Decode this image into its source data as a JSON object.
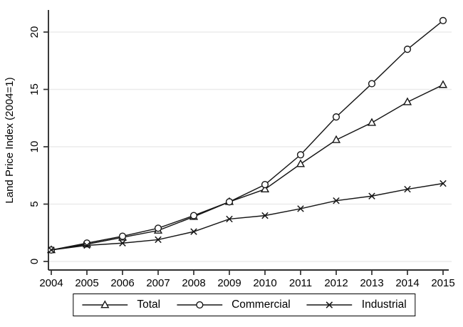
{
  "chart_data": {
    "type": "line",
    "title": "",
    "xlabel": "",
    "ylabel": "Land Price Index (2004=1)",
    "x": [
      "2004",
      "2005",
      "2006",
      "2007",
      "2008",
      "2009",
      "2010",
      "2011",
      "2012",
      "2013",
      "2014",
      "2015"
    ],
    "yticks": [
      0,
      5,
      10,
      15,
      20
    ],
    "ylim": [
      0,
      21.5
    ],
    "grid": "horizontal",
    "legend_position": "bottom-boxed",
    "series": [
      {
        "name": "Total",
        "marker": "triangle",
        "values": [
          1.0,
          1.5,
          2.1,
          2.7,
          3.9,
          5.2,
          6.3,
          8.5,
          10.6,
          12.1,
          13.9,
          15.4
        ]
      },
      {
        "name": "Commercial",
        "marker": "circle",
        "values": [
          1.0,
          1.6,
          2.2,
          2.9,
          4.0,
          5.2,
          6.7,
          9.3,
          12.6,
          15.5,
          18.5,
          21.0
        ]
      },
      {
        "name": "Industrial",
        "marker": "x",
        "values": [
          1.0,
          1.4,
          1.6,
          1.9,
          2.6,
          3.7,
          4.0,
          4.6,
          5.3,
          5.7,
          6.3,
          6.8
        ]
      }
    ],
    "colors": {
      "line": "#161616",
      "grid": "#ebebeb",
      "axis": "#303030",
      "text": "#000000",
      "background": "#ffffff",
      "marker_fill": "#ffffff"
    }
  }
}
